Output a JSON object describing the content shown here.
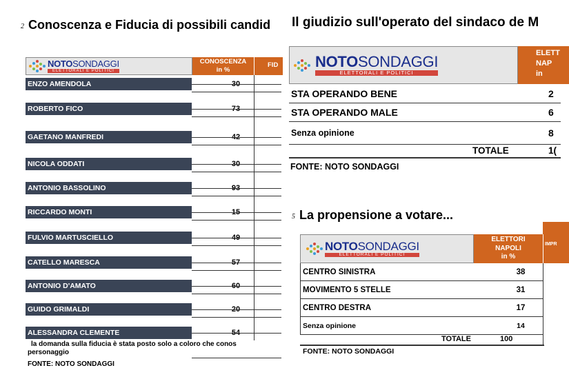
{
  "panel1": {
    "number": "2",
    "title": "Conoscenza e Fiducia di possibili candid",
    "header": {
      "col1": "CONOSCENZA",
      "col1_sub": "in %",
      "col2": "FID"
    },
    "rows": [
      {
        "name": "ENZO AMENDOLA",
        "value": "30"
      },
      {
        "name": "ROBERTO FICO",
        "value": "73"
      },
      {
        "name": "GAETANO MANFREDI",
        "value": "42"
      },
      {
        "name": "NICOLA ODDATI",
        "value": "30"
      },
      {
        "name": "ANTONIO BASSOLINO",
        "value": "93"
      },
      {
        "name": "RICCARDO MONTI",
        "value": "15"
      },
      {
        "name": "FULVIO MARTUSCIELLO",
        "value": "49"
      },
      {
        "name": "CATELLO MARESCA",
        "value": "57"
      },
      {
        "name": "ANTONIO D'AMATO",
        "value": "60"
      },
      {
        "name": "GUIDO GRIMALDI",
        "value": "20"
      },
      {
        "name": "ALESSANDRA CLEMENTE",
        "value": "54"
      }
    ],
    "note_line1": "la domanda sulla fiducia è stata posto solo a coloro che conos",
    "note_line2": "personaggio",
    "source": "FONTE: NOTO SONDAGGI"
  },
  "panel2": {
    "title": "Il giudizio sull'operato del sindaco de M",
    "header": {
      "line1": "ELETT",
      "line2": "NAP",
      "line3": "in"
    },
    "rows": [
      {
        "label": "STA OPERANDO BENE",
        "value": "2"
      },
      {
        "label": "STA OPERANDO MALE",
        "value": "6"
      },
      {
        "label": "Senza opinione",
        "value": "8"
      }
    ],
    "total_label": "TOTALE",
    "total_value": "1(",
    "source": "FONTE: NOTO SONDAGGI"
  },
  "panel3": {
    "number": "5",
    "title": "La propensione a votare...",
    "header": {
      "line1": "ELETTORI",
      "line2": "NAPOLI",
      "line3": "in %",
      "col2": "IMPR"
    },
    "rows": [
      {
        "label": "CENTRO SINISTRA",
        "value": "38"
      },
      {
        "label": "MOVIMENTO 5 STELLE",
        "value": "31"
      },
      {
        "label": "CENTRO DESTRA",
        "value": "17"
      },
      {
        "label": "Senza opinione",
        "value": "14"
      }
    ],
    "total_label": "TOTALE",
    "total_value": "100",
    "source": "FONTE: NOTO SONDAGGI"
  },
  "logo": {
    "bold": "NOTO",
    "light": "SONDAGGI",
    "sub": "ELETTORALI E POLITICI"
  }
}
